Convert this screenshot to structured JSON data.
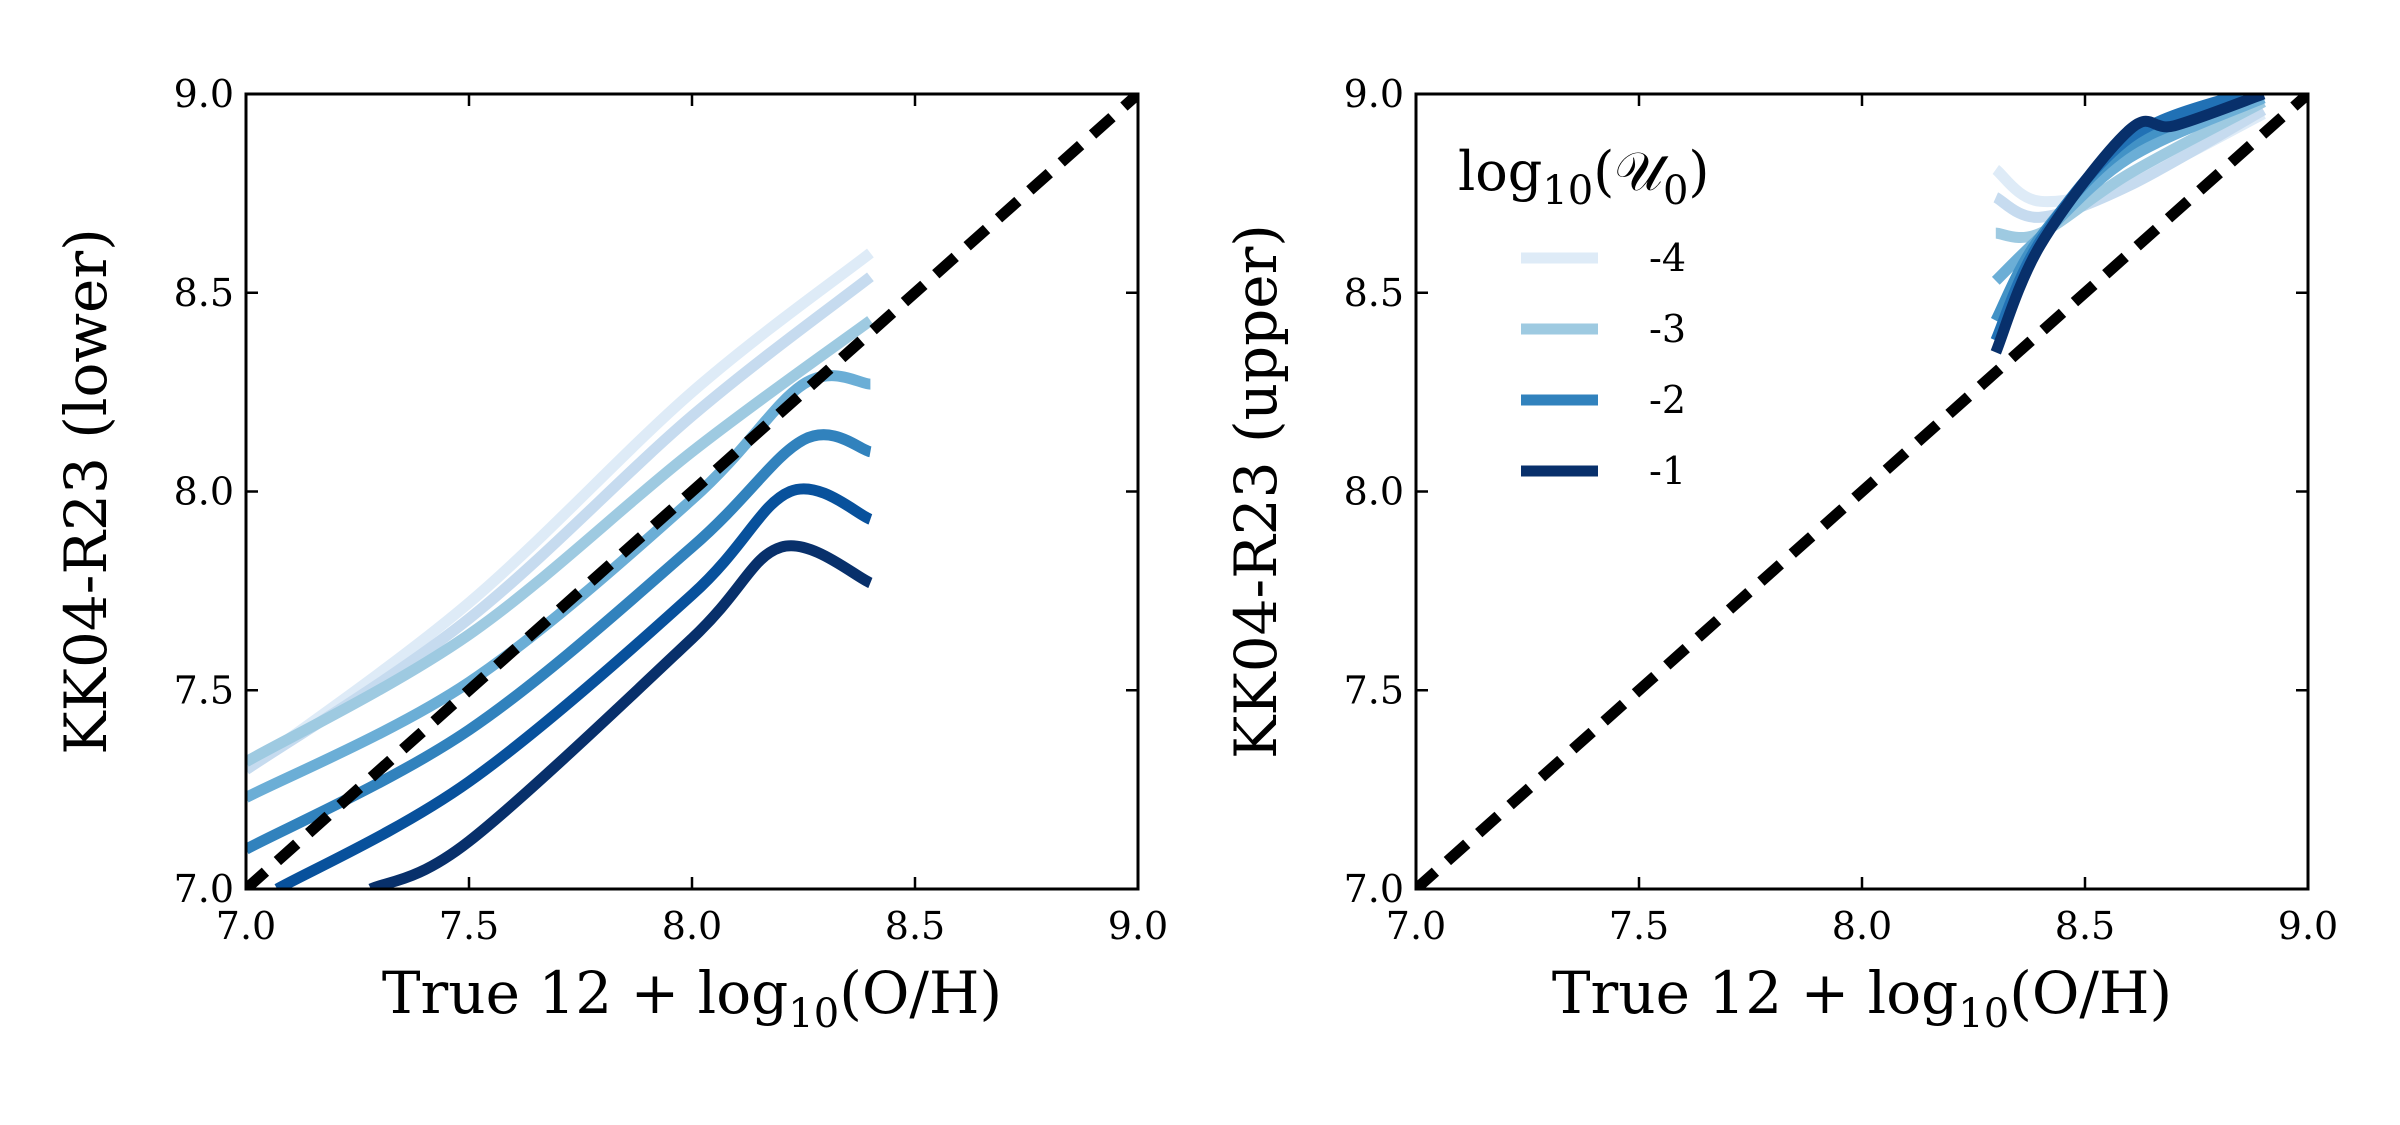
{
  "chart_data": [
    {
      "type": "line",
      "panel": "left",
      "xlabel": {
        "prefix": "True 12 + log",
        "sub": "10",
        "suffix": "(O/H)"
      },
      "ylabel": "KK04-R23 (lower)",
      "xlim": [
        7.0,
        9.0
      ],
      "ylim": [
        7.0,
        9.0
      ],
      "xticks": [
        "7.0",
        "7.5",
        "8.0",
        "8.5",
        "9.0"
      ],
      "yticks": [
        "7.0",
        "7.5",
        "8.0",
        "8.5",
        "9.0"
      ],
      "grid": false,
      "reference_line": {
        "style": "dashed",
        "color": "#000000",
        "x": [
          7.0,
          9.0
        ],
        "y": [
          7.0,
          9.0
        ]
      },
      "series": [
        {
          "color": "#deebf7",
          "x": [
            7.0,
            7.5,
            8.0,
            8.4
          ],
          "y": [
            7.3,
            7.72,
            8.25,
            8.6
          ]
        },
        {
          "color": "#c6dbef",
          "x": [
            7.0,
            7.5,
            8.0,
            8.4
          ],
          "y": [
            7.3,
            7.68,
            8.19,
            8.54
          ]
        },
        {
          "color": "#9ecae1",
          "x": [
            7.0,
            7.5,
            8.0,
            8.4
          ],
          "y": [
            7.32,
            7.64,
            8.1,
            8.43
          ]
        },
        {
          "color": "#6baed6",
          "x": [
            7.0,
            7.5,
            8.0,
            8.25,
            8.4
          ],
          "y": [
            7.23,
            7.52,
            7.98,
            8.27,
            8.27
          ]
        },
        {
          "color": "#3182bd",
          "x": [
            7.0,
            7.5,
            8.0,
            8.25,
            8.4
          ],
          "y": [
            7.1,
            7.4,
            7.86,
            8.13,
            8.1
          ]
        },
        {
          "color": "#08519c",
          "x": [
            7.07,
            7.5,
            8.0,
            8.22,
            8.4
          ],
          "y": [
            7.0,
            7.27,
            7.74,
            8.0,
            7.93
          ]
        },
        {
          "color": "#08306b",
          "x": [
            7.28,
            7.5,
            8.0,
            8.2,
            8.4
          ],
          "y": [
            7.0,
            7.12,
            7.63,
            7.86,
            7.77
          ]
        }
      ]
    },
    {
      "type": "line",
      "panel": "right",
      "xlabel": {
        "prefix": "True 12 + log",
        "sub": "10",
        "suffix": "(O/H)"
      },
      "ylabel": "KK04-R23 (upper)",
      "xlim": [
        7.0,
        9.0
      ],
      "ylim": [
        7.0,
        9.0
      ],
      "xticks": [
        "7.0",
        "7.5",
        "8.0",
        "8.5",
        "9.0"
      ],
      "yticks": [
        "7.0",
        "7.5",
        "8.0",
        "8.5",
        "9.0"
      ],
      "grid": false,
      "reference_line": {
        "style": "dashed",
        "color": "#000000",
        "x": [
          7.0,
          9.0
        ],
        "y": [
          7.0,
          9.0
        ]
      },
      "legend": {
        "placement": "upper-left",
        "title": {
          "prefix": "log",
          "sub": "10",
          "symbol": "(𝒰",
          "symbol_sub": "0",
          "suffix": ")"
        },
        "entries": [
          {
            "label": "-4",
            "color": "#deebf7"
          },
          {
            "label": "-3",
            "color": "#9ecae1"
          },
          {
            "label": "-2",
            "color": "#3182bd"
          },
          {
            "label": "-1",
            "color": "#08306b"
          }
        ]
      },
      "series": [
        {
          "color": "#deebf7",
          "x": [
            8.3,
            8.4,
            8.6,
            8.9
          ],
          "y": [
            8.81,
            8.73,
            8.78,
            8.95
          ]
        },
        {
          "color": "#c6dbef",
          "x": [
            8.3,
            8.4,
            8.6,
            8.9
          ],
          "y": [
            8.74,
            8.69,
            8.77,
            8.96
          ]
        },
        {
          "color": "#9ecae1",
          "x": [
            8.3,
            8.4,
            8.6,
            8.9
          ],
          "y": [
            8.65,
            8.65,
            8.8,
            8.98
          ]
        },
        {
          "color": "#6baed6",
          "x": [
            8.3,
            8.4,
            8.6,
            8.9
          ],
          "y": [
            8.53,
            8.64,
            8.84,
            8.99
          ]
        },
        {
          "color": "#4292c6",
          "x": [
            8.3,
            8.4,
            8.6,
            8.9
          ],
          "y": [
            8.43,
            8.64,
            8.87,
            9.0
          ]
        },
        {
          "color": "#2171b5",
          "x": [
            8.3,
            8.4,
            8.6,
            8.85
          ],
          "y": [
            8.38,
            8.63,
            8.89,
            9.0
          ]
        },
        {
          "color": "#08306b",
          "x": [
            8.3,
            8.4,
            8.6,
            8.7,
            8.9
          ],
          "y": [
            8.35,
            8.62,
            8.91,
            8.92,
            9.0
          ]
        }
      ]
    }
  ]
}
